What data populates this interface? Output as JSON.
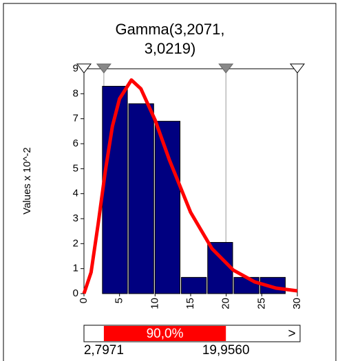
{
  "chart_data": {
    "type": "histogram",
    "title": [
      "Gamma(3,2071,",
      "3,0219)"
    ],
    "y_label": "Values x 10^-2",
    "bins": [
      2.5,
      6.2,
      9.9,
      13.6,
      17.3,
      21.0,
      24.7,
      28.4
    ],
    "values": [
      8.3,
      7.6,
      6.9,
      0.65,
      2.05,
      0.65,
      0.65
    ],
    "color": "#000080",
    "curve": {
      "color": "#ff0000",
      "x": [
        0,
        1,
        2,
        3,
        4,
        5,
        6.67,
        8,
        10,
        12,
        15,
        18,
        21,
        24,
        27,
        30
      ],
      "y": [
        0,
        0.85,
        2.8,
        4.9,
        6.7,
        7.8,
        8.55,
        8.2,
        6.95,
        5.36,
        3.25,
        1.8,
        0.94,
        0.47,
        0.22,
        0.11
      ]
    },
    "xlim": [
      0,
      30
    ],
    "xticks": [
      0,
      5,
      10,
      15,
      20,
      25,
      30
    ],
    "ylim": [
      0,
      9
    ],
    "yticks": [
      0,
      1,
      2,
      3,
      4,
      5,
      6,
      7,
      8,
      9
    ],
    "delimiters": [
      {
        "value": 2.7971,
        "label": "2,7971"
      },
      {
        "value": 19.956,
        "label": "19,9560"
      }
    ],
    "interval_label": "90,0%",
    "right_label": ">"
  }
}
